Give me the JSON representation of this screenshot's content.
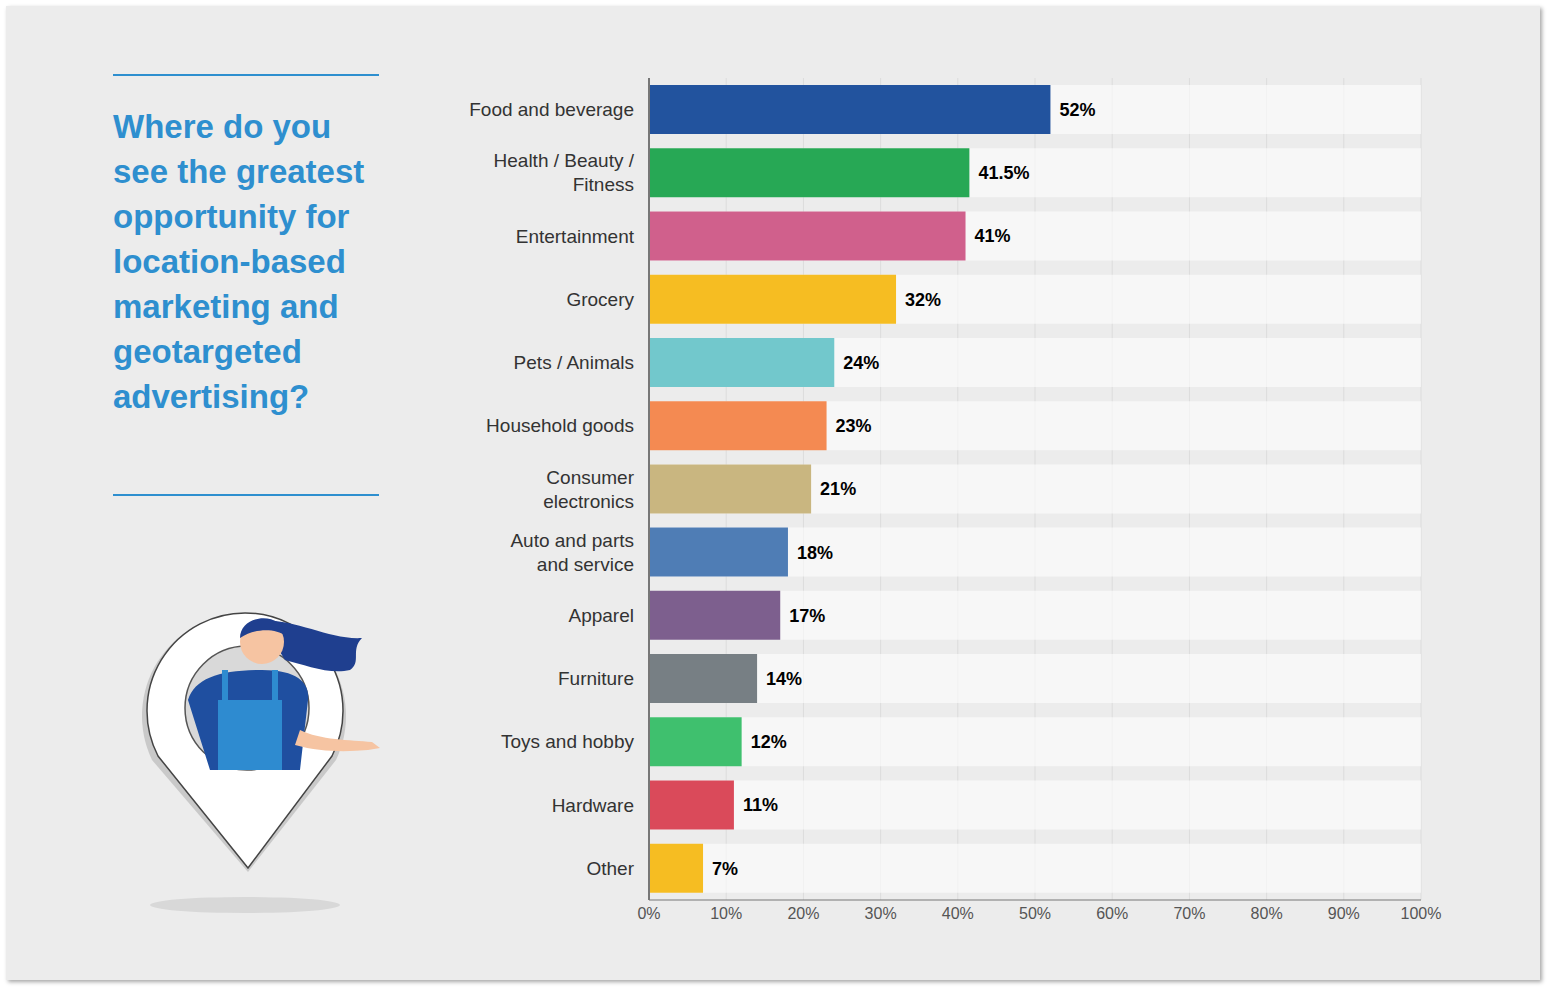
{
  "chart_data": {
    "type": "bar",
    "title": "Where do you see the greatest opportunity for location-based marketing and geotargeted advertising?",
    "orientation": "horizontal",
    "categories": [
      "Food and beverage",
      "Health / Beauty / Fitness",
      "Entertainment",
      "Grocery",
      "Pets / Animals",
      "Household goods",
      "Consumer electronics",
      "Auto and parts and service",
      "Apparel",
      "Furniture",
      "Toys and hobby",
      "Hardware",
      "Other"
    ],
    "values": [
      52,
      41.5,
      41,
      32,
      24,
      23,
      21,
      18,
      17,
      14,
      12,
      11,
      7
    ],
    "value_labels": [
      "52%",
      "41.5%",
      "41%",
      "32%",
      "24%",
      "23%",
      "21%",
      "18%",
      "17%",
      "14%",
      "12%",
      "11%",
      "7%"
    ],
    "colors": [
      "#22539e",
      "#27a855",
      "#d0608c",
      "#f6bd22",
      "#72c8cc",
      "#f48a52",
      "#c9b680",
      "#4f7db5",
      "#7d5f8e",
      "#777f84",
      "#3fc06e",
      "#da4a5a",
      "#f6bd22"
    ],
    "xlim": [
      0,
      100
    ],
    "xticks": [
      {
        "value": 0,
        "label": "0%"
      },
      {
        "value": 10,
        "label": "10%"
      },
      {
        "value": 20,
        "label": "20%"
      },
      {
        "value": 30,
        "label": "30%"
      },
      {
        "value": 40,
        "label": "40%"
      },
      {
        "value": 50,
        "label": "50%"
      },
      {
        "value": 60,
        "label": "60%"
      },
      {
        "value": 70,
        "label": "70%"
      },
      {
        "value": 80,
        "label": "80%"
      },
      {
        "value": 90,
        "label": "90%"
      },
      {
        "value": 100,
        "label": "100%"
      }
    ],
    "grid": true,
    "data_labels": true
  }
}
